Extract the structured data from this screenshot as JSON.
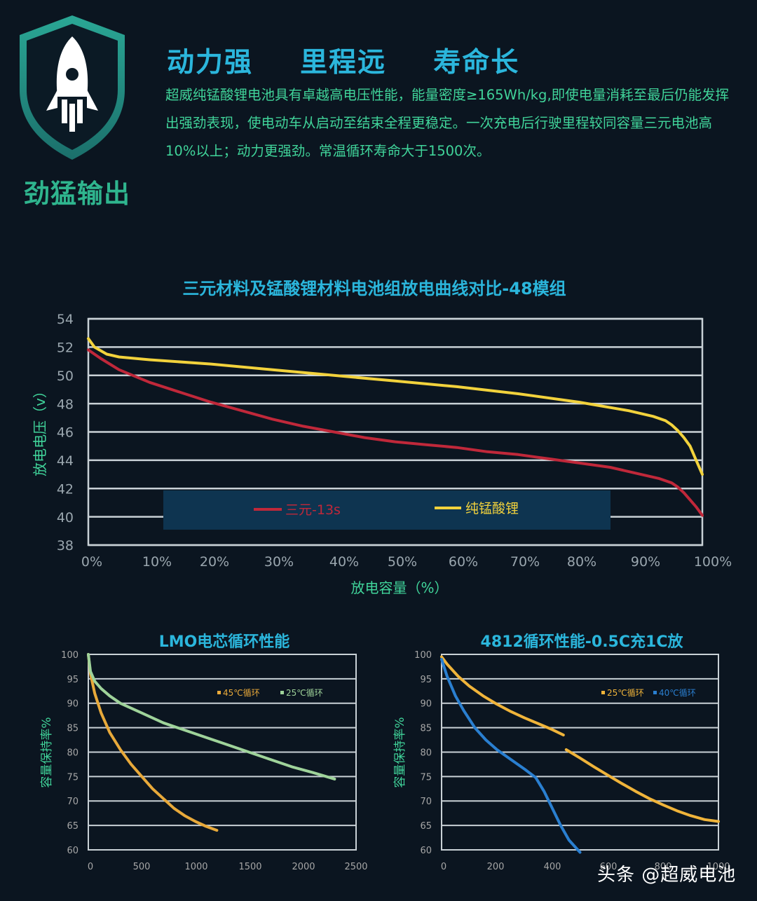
{
  "header": {
    "badge_label": "劲猛输出",
    "headline": "动力强  里程远  寿命长",
    "intro": "超威纯锰酸锂电池具有卓越高电压性能，能量密度≥165Wh/kg,即使电量消耗至最后仍能发挥出强劲表现，使电动车从启动至结束全程更稳定。一次充电后行驶里程较同容量三元电池高10%以上；动力更强劲。常温循环寿命大于1500次。",
    "icon": "rocket-shield-icon"
  },
  "watermark": "头条 @超威电池",
  "colors": {
    "background": "#0b1520",
    "grid": "#c9d1d6",
    "ternary": "#c0283a",
    "lmo": "#f2d23c",
    "lmo45": "#e8a93a",
    "lmo25": "#9fd39a",
    "c25": "#f0b43a",
    "c40": "#2a7fd0"
  },
  "chart_data": [
    {
      "type": "line",
      "title": "三元材料及锰酸锂材料电池组放电曲线对比-48模组",
      "xlabel": "放电容量（%）",
      "ylabel": "放电电压（v）",
      "xlim": [
        0,
        100
      ],
      "ylim": [
        38,
        54
      ],
      "x_ticks": [
        "0%",
        "10%",
        "20%",
        "30%",
        "40%",
        "50%",
        "60%",
        "70%",
        "80%",
        "90%",
        "100%"
      ],
      "y_ticks": [
        "38",
        "40",
        "42",
        "44",
        "46",
        "48",
        "50",
        "52",
        "54"
      ],
      "legend_position": "bottom-center",
      "series": [
        {
          "name": "三元-13s",
          "color": "#c0283a",
          "x": [
            0,
            2,
            5,
            10,
            15,
            20,
            25,
            30,
            35,
            40,
            45,
            50,
            55,
            60,
            65,
            70,
            75,
            80,
            85,
            90,
            93,
            95,
            96,
            97,
            98,
            99,
            100
          ],
          "y": [
            51.8,
            51.2,
            50.4,
            49.5,
            48.8,
            48.1,
            47.5,
            46.9,
            46.4,
            46.0,
            45.6,
            45.3,
            45.1,
            44.9,
            44.6,
            44.4,
            44.1,
            43.8,
            43.5,
            43.0,
            42.7,
            42.4,
            42.1,
            41.7,
            41.2,
            40.7,
            40.1
          ]
        },
        {
          "name": "纯锰酸锂",
          "color": "#f2d23c",
          "x": [
            0,
            1,
            3,
            5,
            10,
            20,
            30,
            40,
            50,
            60,
            70,
            80,
            88,
            92,
            94,
            95,
            96,
            97,
            98,
            99,
            100
          ],
          "y": [
            52.6,
            52.0,
            51.5,
            51.3,
            51.1,
            50.8,
            50.4,
            50.0,
            49.6,
            49.2,
            48.7,
            48.1,
            47.5,
            47.1,
            46.8,
            46.5,
            46.1,
            45.6,
            45.0,
            44.0,
            43.0
          ]
        }
      ]
    },
    {
      "type": "line",
      "title": "LMO电芯循环性能",
      "ylabel": "容量保持率%",
      "xlim": [
        0,
        2500
      ],
      "ylim": [
        60,
        100
      ],
      "x_ticks": [
        "0",
        "500",
        "1000",
        "1500",
        "2000",
        "2500"
      ],
      "y_ticks": [
        "60",
        "65",
        "70",
        "75",
        "80",
        "85",
        "90",
        "95",
        "100"
      ],
      "legend_position": "top-right",
      "series": [
        {
          "name": "45℃循环",
          "color": "#e8a93a",
          "x": [
            0,
            20,
            60,
            120,
            200,
            300,
            400,
            500,
            600,
            700,
            800,
            900,
            1000,
            1100,
            1200
          ],
          "y": [
            100,
            96,
            92,
            88,
            84,
            80.5,
            77.5,
            75,
            72.5,
            70.5,
            68.5,
            67,
            65.8,
            64.8,
            64
          ]
        },
        {
          "name": "25℃循环",
          "color": "#9fd39a",
          "x": [
            0,
            20,
            60,
            120,
            200,
            300,
            500,
            700,
            900,
            1100,
            1300,
            1500,
            1700,
            1900,
            2100,
            2300
          ],
          "y": [
            100,
            96.5,
            94.5,
            93,
            91.5,
            90,
            88,
            86,
            84.5,
            83,
            81.5,
            80,
            78.5,
            77,
            75.8,
            74.5
          ]
        }
      ]
    },
    {
      "type": "line",
      "title": "4812循环性能-0.5C充1C放",
      "ylabel": "容量保持率%",
      "xlim": [
        0,
        1000
      ],
      "ylim": [
        60,
        100
      ],
      "x_ticks": [
        "0",
        "200",
        "400",
        "600",
        "800",
        "1000"
      ],
      "y_ticks": [
        "60",
        "65",
        "70",
        "75",
        "80",
        "85",
        "90",
        "95",
        "100"
      ],
      "legend_position": "top-right",
      "series": [
        {
          "name": "25℃循环",
          "color": "#f0b43a",
          "segments": [
            {
              "x": [
                0,
                20,
                60,
                100,
                150,
                200,
                250,
                300,
                350,
                400,
                440
              ],
              "y": [
                99.5,
                98,
                95.5,
                93.5,
                91.5,
                89.8,
                88.3,
                87,
                85.8,
                84.6,
                83.5
              ]
            },
            {
              "x": [
                450,
                500,
                550,
                600,
                650,
                700,
                750,
                800,
                850,
                900,
                950,
                1000
              ],
              "y": [
                80.5,
                78.8,
                77,
                75.3,
                73.6,
                72,
                70.5,
                69.2,
                68,
                67,
                66.2,
                65.8
              ]
            }
          ]
        },
        {
          "name": "40℃循环",
          "color": "#2a7fd0",
          "x": [
            0,
            20,
            50,
            80,
            120,
            160,
            200,
            250,
            300,
            340,
            370,
            400,
            430,
            460,
            500
          ],
          "y": [
            99,
            95.5,
            91.5,
            88.5,
            85,
            82.5,
            80.5,
            78.5,
            76.5,
            74.8,
            72,
            68.5,
            65,
            62,
            59.5
          ]
        }
      ]
    }
  ]
}
